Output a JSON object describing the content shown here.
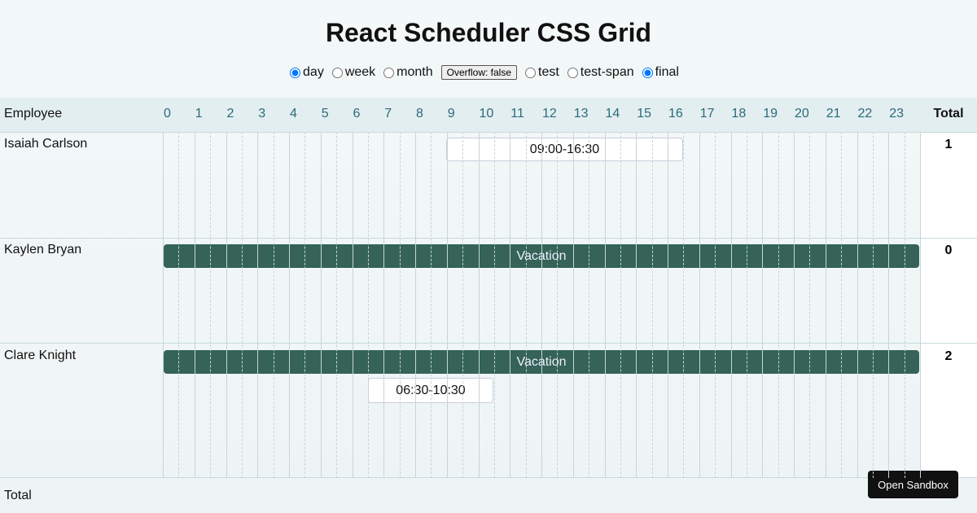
{
  "header": {
    "title": "React Scheduler CSS Grid"
  },
  "controls": {
    "views": [
      {
        "label": "day",
        "checked": true
      },
      {
        "label": "week",
        "checked": false
      },
      {
        "label": "month",
        "checked": false
      }
    ],
    "overflow_button": "Overflow: false",
    "modes": [
      {
        "label": "test",
        "checked": false
      },
      {
        "label": "test-span",
        "checked": false
      },
      {
        "label": "final",
        "checked": true
      }
    ]
  },
  "grid": {
    "employee_header": "Employee",
    "hours": [
      0,
      1,
      2,
      3,
      4,
      5,
      6,
      7,
      8,
      9,
      10,
      11,
      12,
      13,
      14,
      15,
      16,
      17,
      18,
      19,
      20,
      21,
      22,
      23
    ],
    "total_header": "Total",
    "rows": [
      {
        "name": "Isaiah Carlson",
        "total": 1,
        "events": [
          {
            "label": "09:00-16:30"
          }
        ]
      },
      {
        "name": "Kaylen Bryan",
        "total": 0,
        "events": [
          {
            "label": "Vacation"
          }
        ]
      },
      {
        "name": "Clare Knight",
        "total": 2,
        "events": [
          {
            "label": "Vacation"
          },
          {
            "label": "06:30-10:30"
          }
        ]
      }
    ],
    "footer_label": "Total"
  },
  "sandbox_button": "Open Sandbox"
}
